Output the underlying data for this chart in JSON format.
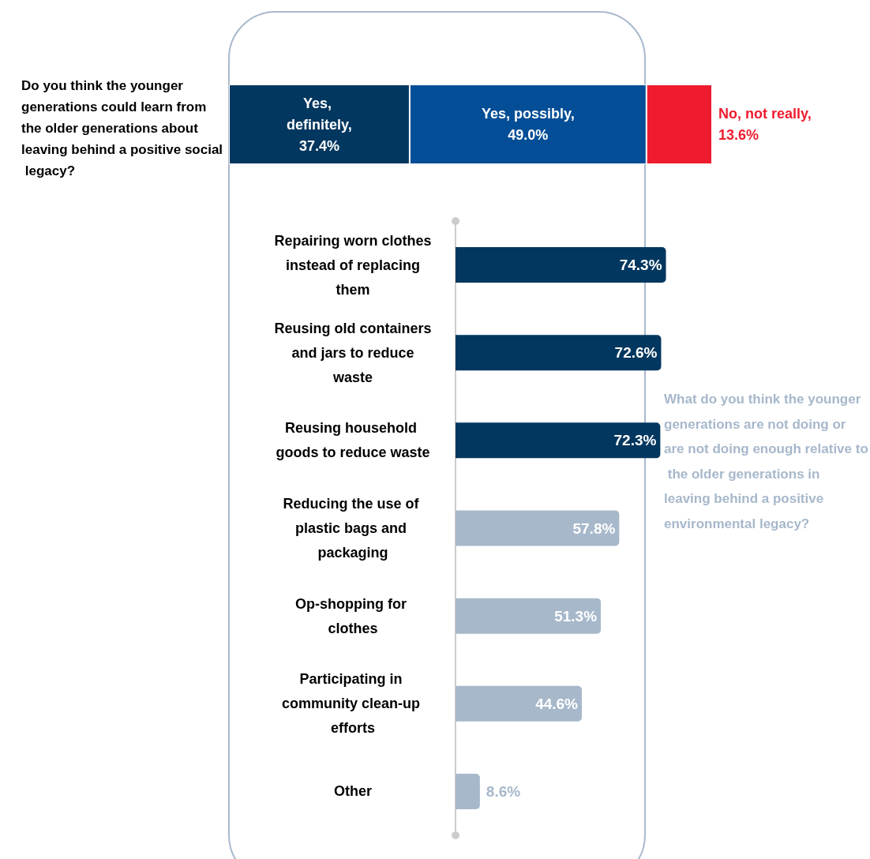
{
  "chart_data": [
    {
      "type": "bar",
      "orientation": "horizontal",
      "stacked": true,
      "title": "Do you think the younger generations could learn from the older generations about leaving behind a positive social legacy?",
      "categories": [
        null
      ],
      "tick_labels": false,
      "legend": false,
      "series": [
        {
          "name": "Yes, definitely,",
          "color": "#02375f",
          "values": [
            37.4
          ],
          "value_labels": [
            "37.4%"
          ]
        },
        {
          "name": "Yes, possibly,",
          "color": "#034e96",
          "values": [
            49.0
          ],
          "value_labels": [
            "49.0%"
          ]
        },
        {
          "name": "No, not really,",
          "color": "#ee1c2e",
          "values": [
            13.6
          ],
          "value_labels": [
            "13.6%"
          ]
        }
      ]
    },
    {
      "type": "bar",
      "orientation": "horizontal",
      "title": "What do you think the younger generations are not doing or are not doing enough relative to the older generations in leaving behind a positive environmental legacy?",
      "categories": [
        "Repairing worn clothes instead of replacing them",
        "Reusing old containers and jars to reduce waste",
        "Reusing household goods to reduce waste",
        "Reducing the use of plastic bags and packaging",
        "Op-shopping for clothes",
        "Participating in community clean-up efforts",
        "Other"
      ],
      "values": [
        74.3,
        72.6,
        72.3,
        57.8,
        51.3,
        44.6,
        8.6
      ],
      "value_labels": [
        "74.3%",
        "72.6%",
        "72.3%",
        "57.8%",
        "51.3%",
        "44.6%",
        "8.6%"
      ],
      "colors": [
        "#02375f",
        "#02375f",
        "#02375f",
        "#a7b8cb",
        "#a7b8cb",
        "#a7b8cb",
        "#a7b8cb"
      ],
      "tick_labels": "y",
      "legend": false
    }
  ]
}
